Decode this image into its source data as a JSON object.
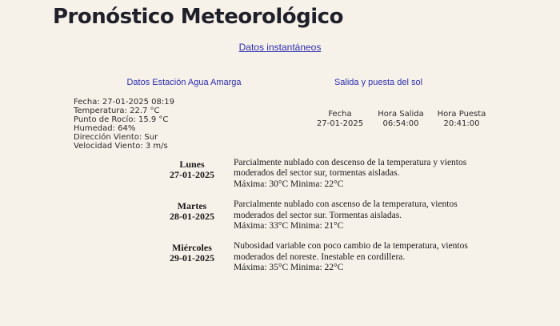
{
  "page": {
    "title": "Pronóstico Meteorológico",
    "instant_link": "Datos instantáneos"
  },
  "colors": {
    "background": "#f7f2e9",
    "title_text": "#20202a",
    "link_blue": "#2e2eb0",
    "section_header_blue": "#2e2eb0",
    "body_text": "#2b2b2b",
    "forecast_text": "#191919"
  },
  "station": {
    "header": "Datos Estación Agua Amarga",
    "lines": [
      "Fecha: 27-01-2025 08:19",
      "Temperatura: 22.7 °C",
      "Punto de Rocío: 15.9 °C",
      "Humedad: 64%",
      "Dirección Viento: Sur",
      "Velocidad Viento: 3 m/s"
    ]
  },
  "sun": {
    "header": "Salida y puesta del sol",
    "columns": [
      "Fecha",
      "Hora Salida",
      "Hora Puesta"
    ],
    "values": [
      "27-01-2025",
      "06:54:00",
      "20:41:00"
    ]
  },
  "forecast": {
    "days": [
      {
        "day": "Lunes",
        "date": "27-01-2025",
        "description": "Parcialmente nublado con descenso de la temperatura y vientos moderados del sector sur, tormentas aisladas.",
        "extremes": "Máxima: 30°C Minima: 22°C"
      },
      {
        "day": "Martes",
        "date": "28-01-2025",
        "description": "Parcialmente nublado con ascenso de la temperatura, vientos moderados del sector sur. Tormentas aisladas.",
        "extremes": "Máxima: 33°C Minima: 21°C"
      },
      {
        "day": "Miércoles",
        "date": "29-01-2025",
        "description": "Nubosidad variable con poco cambio de la temperatura, vientos moderados del noreste. Inestable en cordillera.",
        "extremes": "Máxima: 35°C Minima: 22°C"
      }
    ]
  }
}
